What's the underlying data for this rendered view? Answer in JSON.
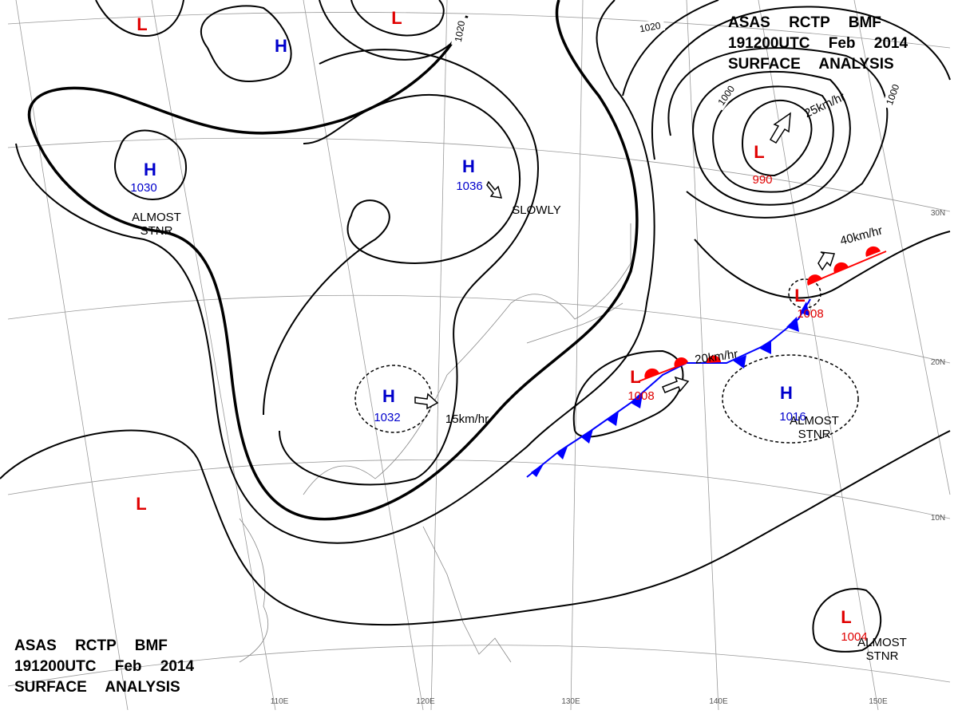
{
  "title_block": {
    "line1": "ASAS RCTP BMF",
    "line2": "191200UTC Feb 2014",
    "line3": "SURFACE ANALYSIS"
  },
  "systems": [
    {
      "symbol": "L"
    },
    {
      "symbol": "L"
    },
    {
      "symbol": "H"
    },
    {
      "symbol": "H",
      "pressure": "1030"
    },
    {
      "symbol": "H",
      "pressure": "1036"
    },
    {
      "symbol": "L",
      "pressure": "990"
    },
    {
      "symbol": "L",
      "pressure": "1008"
    },
    {
      "symbol": "L",
      "pressure": "1008"
    },
    {
      "symbol": "H",
      "pressure": "1032"
    },
    {
      "symbol": "H",
      "pressure": "1016"
    },
    {
      "symbol": "L",
      "pressure": "1004"
    },
    {
      "symbol": "L"
    }
  ],
  "annotations": [
    {
      "lines": [
        "ALMOST",
        "STNR"
      ]
    },
    {
      "lines": [
        "ALMOST",
        "STNR"
      ]
    },
    {
      "lines": [
        "ALMOST",
        "STNR"
      ]
    },
    {
      "lines": [
        "SLOWLY"
      ]
    }
  ],
  "motions": [
    "25km/hr",
    "40km/hr",
    "20km/hr",
    "15km/hr"
  ],
  "isobar_labels": [
    "1020",
    "1020",
    "1000",
    "1000"
  ],
  "grid_labels": [
    "30N",
    "20N",
    "10N",
    "110E",
    "120E",
    "130E",
    "140E",
    "150E"
  ]
}
